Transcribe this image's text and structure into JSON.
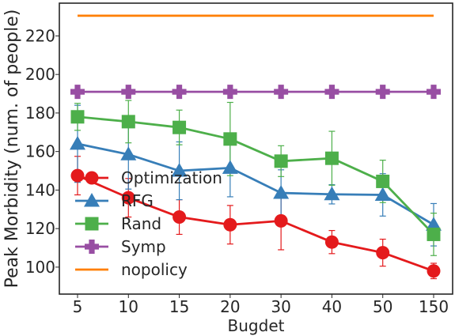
{
  "chart_data": {
    "type": "line",
    "xlabel": "Bugdet",
    "ylabel": "Peak Morbidity (num. of people)",
    "categories": [
      "5",
      "10",
      "15",
      "20",
      "30",
      "40",
      "50",
      "150"
    ],
    "ylim": [
      86,
      237
    ],
    "yticks": [
      100,
      120,
      140,
      160,
      180,
      200,
      220
    ],
    "grid": false,
    "legend_position": "lower-left",
    "series": [
      {
        "name": "Optimization",
        "color": "#e41a1c",
        "marker": "circle",
        "values": [
          147.5,
          136,
          126,
          122,
          124,
          113,
          107.5,
          98
        ],
        "errors": [
          10,
          10,
          9,
          10,
          15,
          6,
          7,
          4
        ]
      },
      {
        "name": "RFG",
        "color": "#377eb8",
        "marker": "triangle",
        "values": [
          164,
          158.5,
          150,
          151.5,
          138.5,
          137.8,
          137.5,
          122
        ],
        "errors": [
          20,
          18,
          15,
          15,
          12,
          5,
          11,
          11
        ]
      },
      {
        "name": "Rand",
        "color": "#4daf4a",
        "marker": "square",
        "values": [
          178,
          175.5,
          172.5,
          166.5,
          155,
          156.5,
          144.5,
          117
        ],
        "errors": [
          7,
          11,
          9,
          19,
          8,
          14,
          11,
          11
        ]
      },
      {
        "name": "Symp",
        "color": "#984ea3",
        "marker": "plus",
        "values": [
          191,
          191,
          191,
          191,
          191,
          191,
          191,
          191
        ],
        "errors": [
          0,
          0,
          0,
          0,
          0,
          0,
          0,
          0
        ]
      },
      {
        "name": "nopolicy",
        "color": "#ff7f00",
        "marker": "none",
        "values": [
          230.5,
          230.5,
          230.5,
          230.5,
          230.5,
          230.5,
          230.5,
          230.5
        ],
        "errors": [
          0,
          0,
          0,
          0,
          0,
          0,
          0,
          0
        ]
      }
    ]
  }
}
